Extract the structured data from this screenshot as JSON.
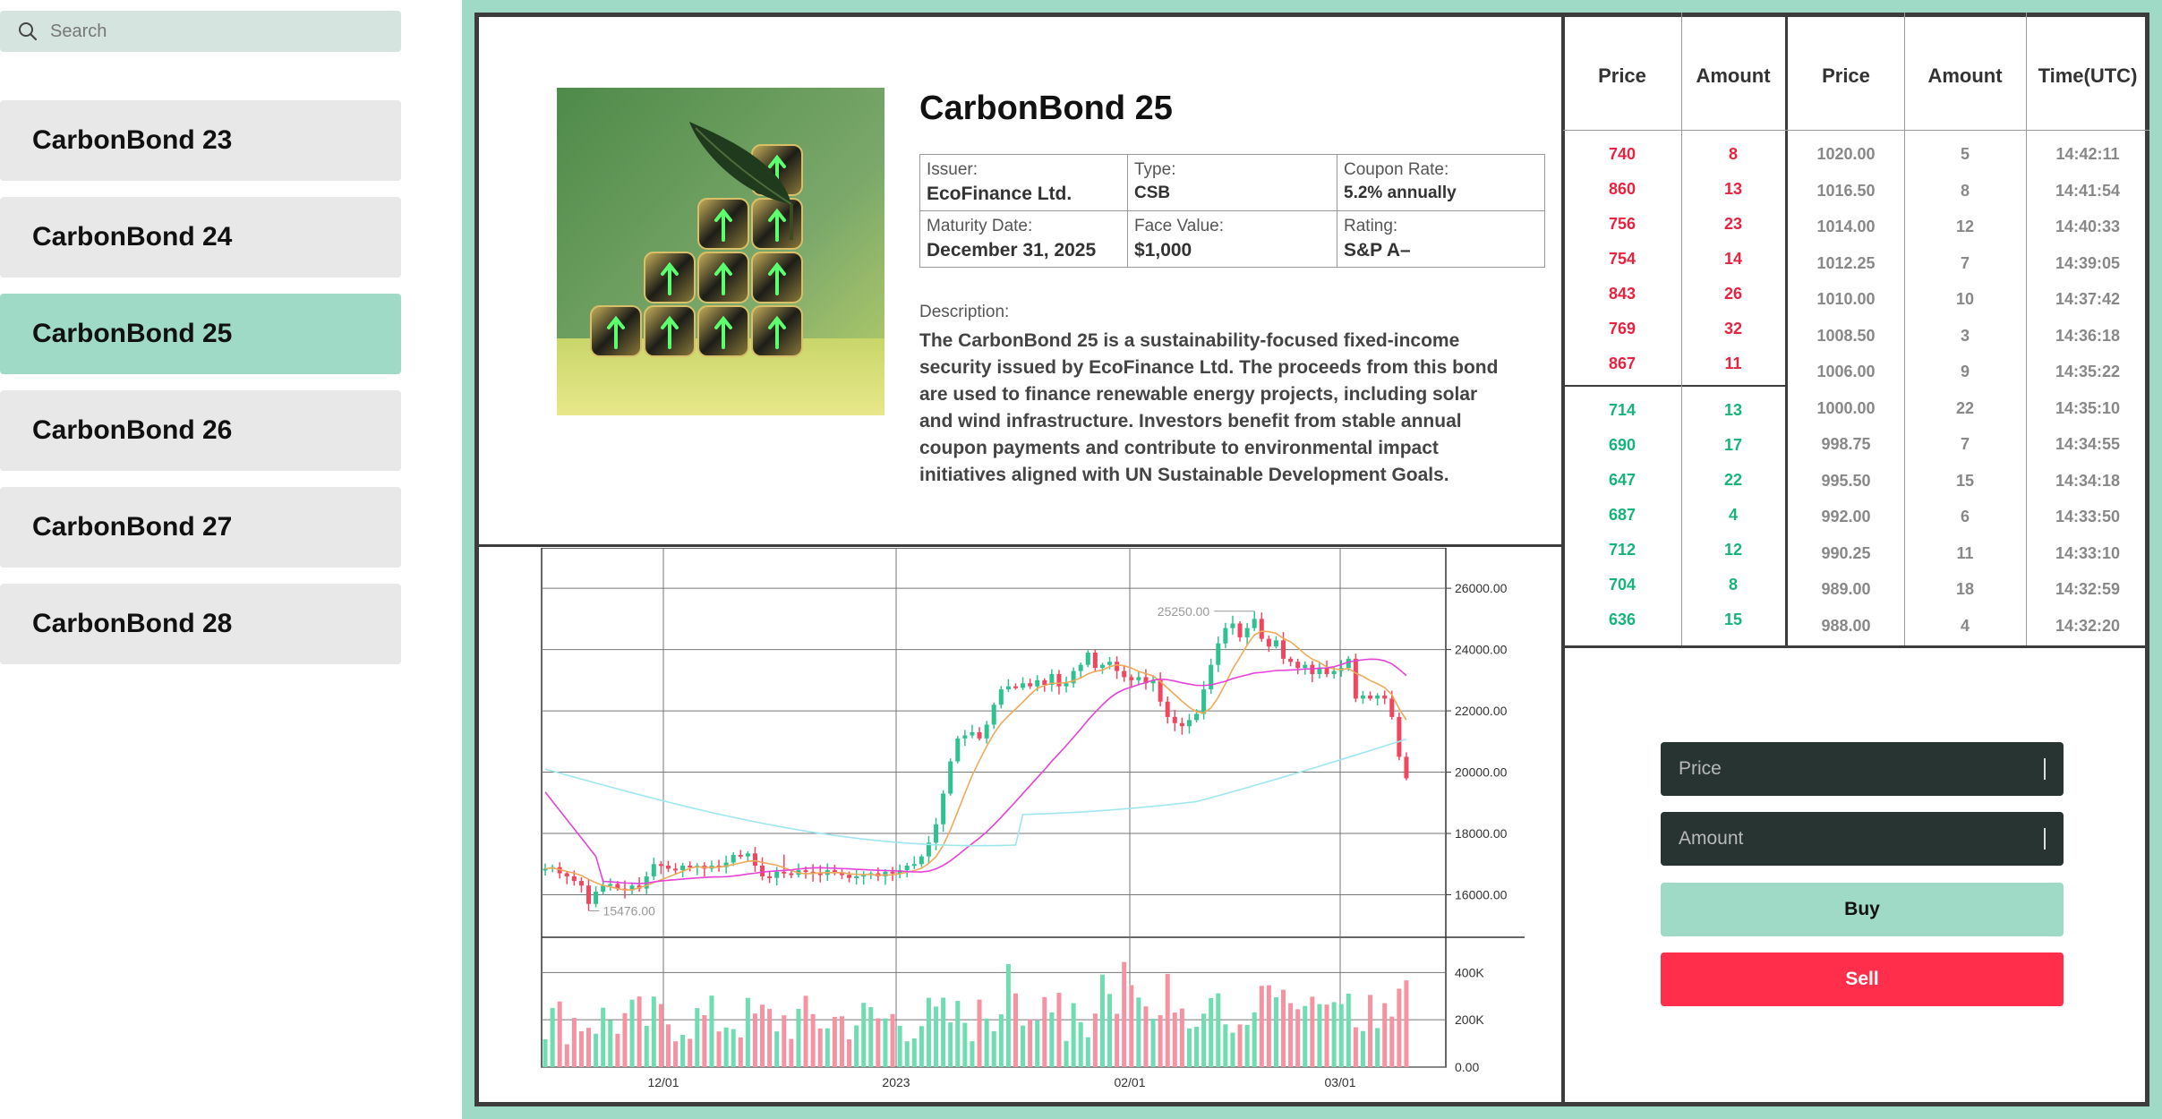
{
  "sidebar": {
    "search_placeholder": "Search",
    "items": [
      {
        "label": "CarbonBond 23",
        "active": false
      },
      {
        "label": "CarbonBond 24",
        "active": false
      },
      {
        "label": "CarbonBond 25",
        "active": true
      },
      {
        "label": "CarbonBond 26",
        "active": false
      },
      {
        "label": "CarbonBond 27",
        "active": false
      },
      {
        "label": "CarbonBond 28",
        "active": false
      }
    ]
  },
  "bond": {
    "title": "CarbonBond 25",
    "issuer_label": "Issuer:",
    "issuer": "EcoFinance Ltd.",
    "type_label": "Type:",
    "type": "CSB",
    "coupon_label": "Coupon Rate:",
    "coupon": "5.2% annually",
    "maturity_label": "Maturity Date:",
    "maturity": "December 31, 2025",
    "face_label": "Face Value:",
    "face": "$1,000",
    "rating_label": "Rating:",
    "rating": "S&P A–",
    "description_label": "Description:",
    "description": "The CarbonBond 25 is a sustainability-focused fixed-income security issued by EcoFinance Ltd. The proceeds from this bond are used to finance renewable energy projects, including solar and wind infrastructure. Investors benefit from stable annual coupon payments and contribute to environmental impact initiatives aligned with UN Sustainable Development Goals."
  },
  "order_book": {
    "headers": [
      "Price",
      "Amount"
    ],
    "asks": [
      [
        "740",
        "8"
      ],
      [
        "860",
        "13"
      ],
      [
        "756",
        "23"
      ],
      [
        "754",
        "14"
      ],
      [
        "843",
        "26"
      ],
      [
        "769",
        "32"
      ],
      [
        "867",
        "11"
      ]
    ],
    "bids": [
      [
        "714",
        "13"
      ],
      [
        "690",
        "17"
      ],
      [
        "647",
        "22"
      ],
      [
        "687",
        "4"
      ],
      [
        "712",
        "12"
      ],
      [
        "704",
        "8"
      ],
      [
        "636",
        "15"
      ]
    ],
    "ask_color": "#e8223f",
    "bid_color": "#17b47a"
  },
  "trades": {
    "headers": [
      "Price",
      "Amount",
      "Time(UTC)"
    ],
    "rows": [
      [
        "1020.00",
        "5",
        "14:42:11"
      ],
      [
        "1016.50",
        "8",
        "14:41:54"
      ],
      [
        "1014.00",
        "12",
        "14:40:33"
      ],
      [
        "1012.25",
        "7",
        "14:39:05"
      ],
      [
        "1010.00",
        "10",
        "14:37:42"
      ],
      [
        "1008.50",
        "3",
        "14:36:18"
      ],
      [
        "1006.00",
        "9",
        "14:35:22"
      ],
      [
        "1000.00",
        "22",
        "14:35:10"
      ],
      [
        "998.75",
        "7",
        "14:34:55"
      ],
      [
        "995.50",
        "15",
        "14:34:18"
      ],
      [
        "992.00",
        "6",
        "14:33:50"
      ],
      [
        "990.25",
        "11",
        "14:33:10"
      ],
      [
        "989.00",
        "18",
        "14:32:59"
      ],
      [
        "988.00",
        "4",
        "14:32:20"
      ]
    ]
  },
  "form": {
    "price_placeholder": "Price",
    "amount_placeholder": "Amount",
    "buy_label": "Buy",
    "sell_label": "Sell"
  },
  "chart_data": {
    "type": "candlestick",
    "x_ticks": [
      "12/01",
      "2023",
      "02/01",
      "03/01"
    ],
    "price_ticks": [
      "16000.00",
      "18000.00",
      "20000.00",
      "22000.00",
      "24000.00",
      "26000.00"
    ],
    "volume_ticks": [
      "0.00",
      "200K",
      "400K"
    ],
    "price_range": [
      14700,
      26500
    ],
    "volume_range": [
      0,
      530000
    ],
    "annotations": {
      "high": "25250.00",
      "low": "15476.00"
    },
    "up_color": "#2fc28e",
    "down_color": "#f0465f",
    "key_closes": [
      16850,
      16900,
      16700,
      16600,
      16450,
      16300,
      15700,
      16100,
      16300,
      16350,
      16200,
      16150,
      16300,
      16200,
      16600,
      17000,
      16950,
      16850,
      16800,
      16950,
      16900,
      16950,
      16850,
      16950,
      16900,
      17050,
      17300,
      17250,
      17350,
      16950,
      16600,
      16550,
      16750,
      16700,
      16650,
      16800,
      16750,
      16700,
      16650,
      16800,
      16700,
      16650,
      16550,
      16600,
      16650,
      16700,
      16600,
      16750,
      16700,
      16800,
      16950,
      17000,
      17250,
      17700,
      18300,
      19300,
      20350,
      21100,
      21200,
      21300,
      21100,
      21550,
      22200,
      22700,
      22800,
      22750,
      22900,
      22800,
      23000,
      22850,
      23200,
      22800,
      22900,
      23300,
      23500,
      23900,
      23400,
      23500,
      23600,
      23300,
      23100,
      23000,
      23100,
      22900,
      23000,
      22300,
      21800,
      21600,
      21500,
      21700,
      21900,
      22700,
      23500,
      24200,
      24700,
      24850,
      24400,
      24700,
      25000,
      24350,
      24100,
      24300,
      23700,
      23600,
      23400,
      23500,
      23200,
      23400,
      23200,
      23300,
      23400,
      23700,
      22400,
      22500,
      22400,
      22500,
      22400,
      21800,
      20500,
      19800
    ]
  }
}
